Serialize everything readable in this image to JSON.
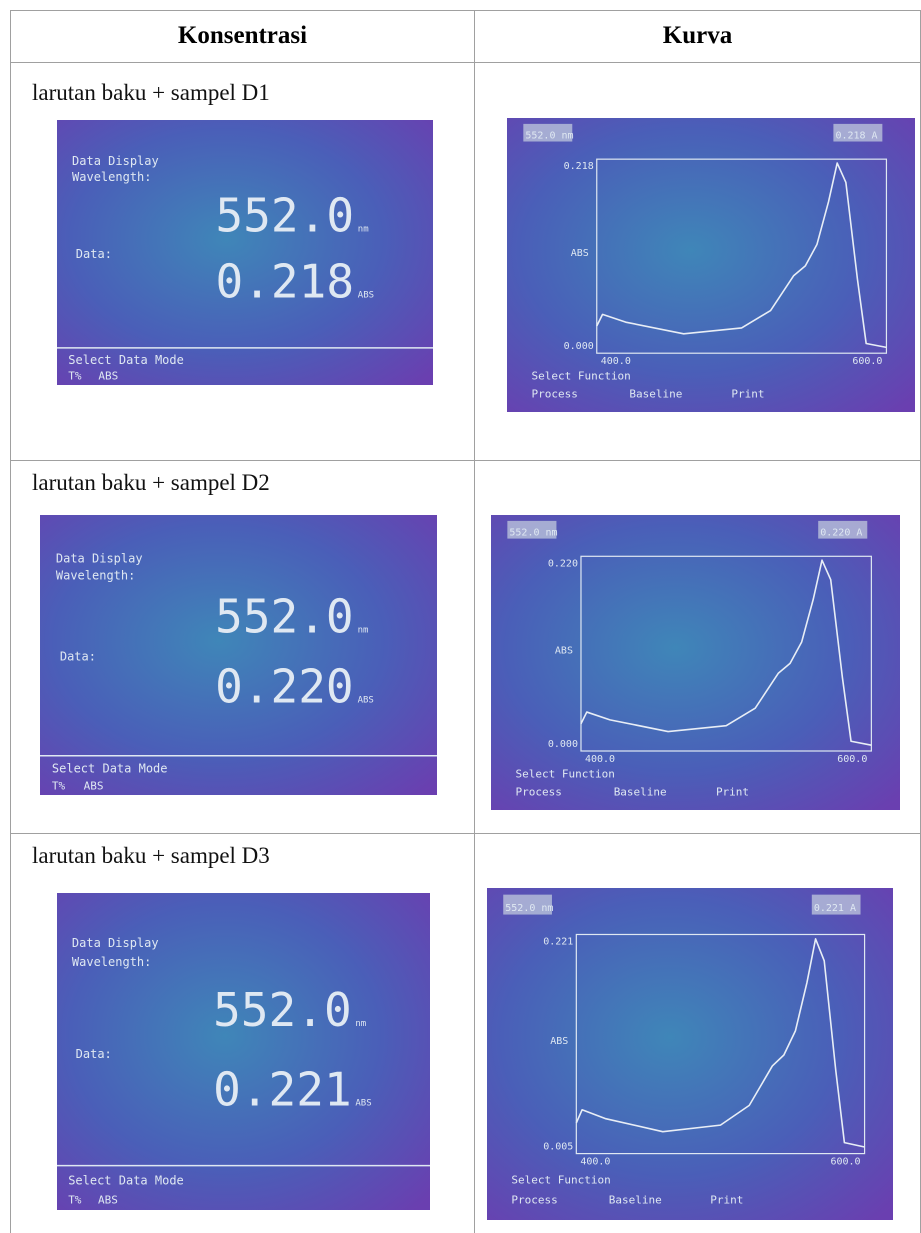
{
  "table": {
    "header": [
      "Konsentrasi",
      "Kurva"
    ],
    "rows": [
      {
        "label": "larutan baku + sampel D1",
        "screen": {
          "title": "Data Display",
          "wavelength_label": "Wavelength:",
          "wavelength": "552.0",
          "wavelength_unit": "nm",
          "data_label": "Data:",
          "reading": "0.218",
          "reading_unit": "ABS",
          "footer": "Select Data Mode",
          "options": [
            "T%",
            "ABS"
          ]
        },
        "curve": {
          "wavelength": "552.0 nm",
          "reading": "0.218 A",
          "y_top": "0.218",
          "y_label": "ABS",
          "y_bottom": "0.000",
          "x_left": "400.0",
          "x_right": "600.0",
          "footer": "Select Function",
          "options": [
            "Process",
            "Baseline",
            "Print"
          ]
        }
      },
      {
        "label": "larutan baku + sampel D2",
        "screen": {
          "title": "Data Display",
          "wavelength_label": "Wavelength:",
          "wavelength": "552.0",
          "wavelength_unit": "nm",
          "data_label": "Data:",
          "reading": "0.220",
          "reading_unit": "ABS",
          "footer": "Select Data Mode",
          "options": [
            "T%",
            "ABS"
          ]
        },
        "curve": {
          "wavelength": "552.0 nm",
          "reading": "0.220 A",
          "y_top": "0.220",
          "y_label": "ABS",
          "y_bottom": "0.000",
          "x_left": "400.0",
          "x_right": "600.0",
          "footer": "Select Function",
          "options": [
            "Process",
            "Baseline",
            "Print"
          ]
        }
      },
      {
        "label": "larutan baku + sampel D3",
        "screen": {
          "title": "Data Display",
          "wavelength_label": "Wavelength:",
          "wavelength": "552.0",
          "wavelength_unit": "nm",
          "data_label": "Data:",
          "reading": "0.221",
          "reading_unit": "ABS",
          "footer": "Select Data Mode",
          "options": [
            "T%",
            "ABS"
          ]
        },
        "curve": {
          "wavelength": "552.0 nm",
          "reading": "0.221 A",
          "y_top": "0.221",
          "y_label": "ABS",
          "y_bottom": "0.005",
          "x_left": "400.0",
          "x_right": "600.0",
          "footer": "Select Function",
          "options": [
            "Process",
            "Baseline",
            "Print"
          ]
        }
      }
    ]
  }
}
